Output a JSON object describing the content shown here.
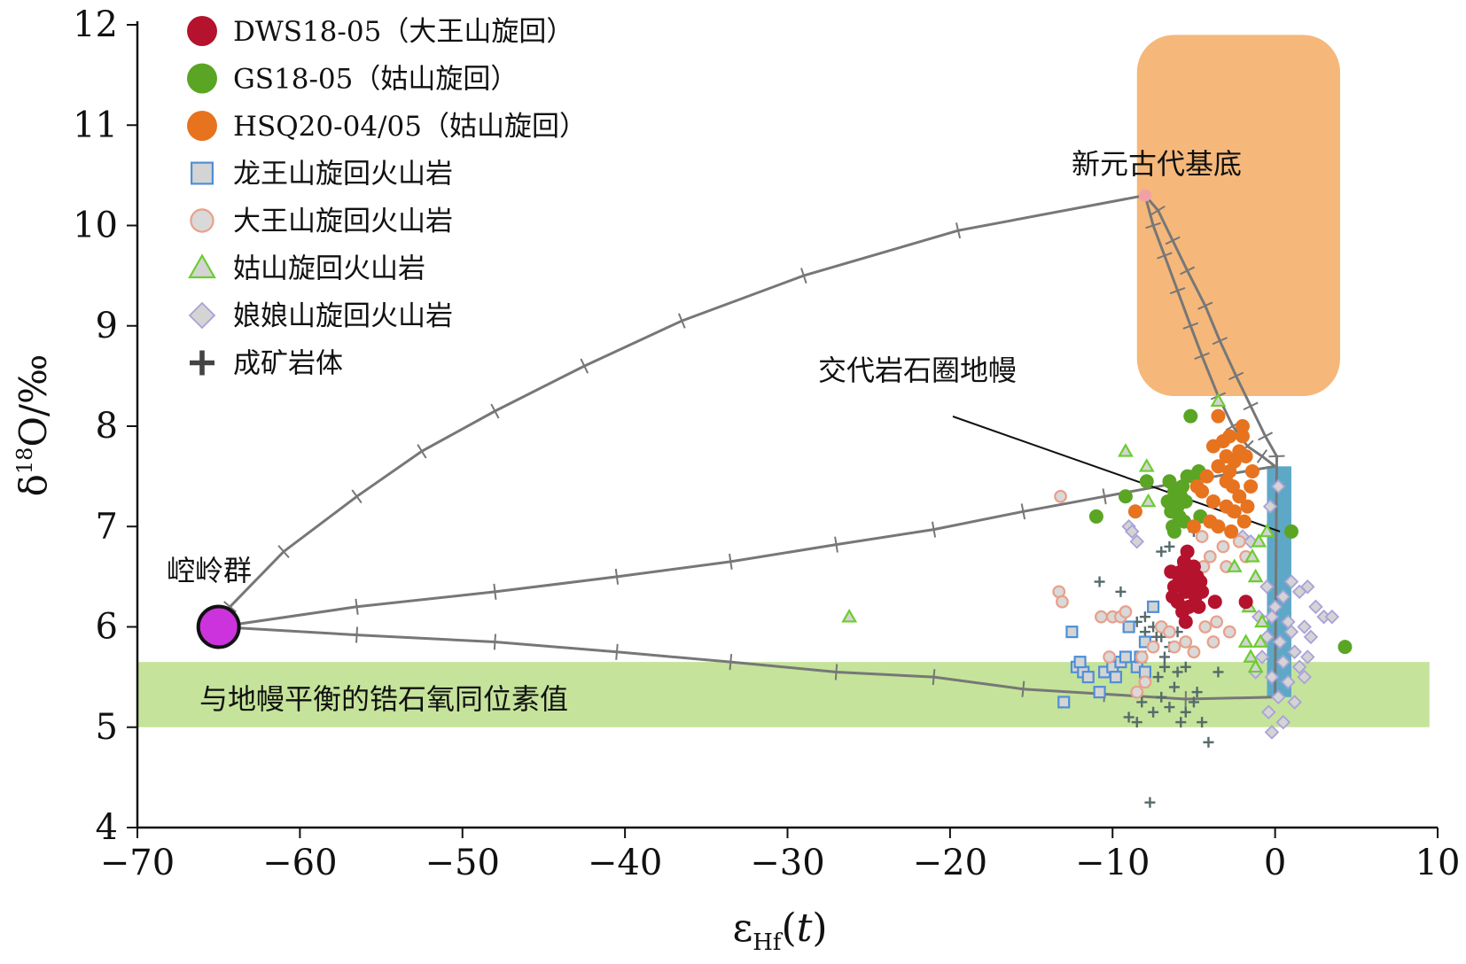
{
  "chart_data": {
    "type": "scatter",
    "xlabel": "εHf(t)",
    "ylabel": "δ18O/‰",
    "xlim": [
      -70,
      10
    ],
    "ylim": [
      4,
      12
    ],
    "x_ticks": [
      "−70",
      "−60",
      "−50",
      "−40",
      "−30",
      "−20",
      "−10",
      "0",
      "10"
    ],
    "y_ticks": [
      "4",
      "5",
      "6",
      "7",
      "8",
      "9",
      "10",
      "11",
      "12"
    ],
    "colors": {
      "dws": "#b5122e",
      "gs": "#5aa524",
      "hsq": "#e7731f",
      "basement": "#f5b87a",
      "mantle_band": "#c5e39a",
      "depleted_mantle": "#5ea8c7",
      "kongling": "#cc33dd",
      "curve": "#777777",
      "orebody": "#4a6a6a"
    },
    "legend": [
      {
        "key": "dws",
        "label": "DWS18-05（大王山旋回）",
        "marker": "filled-circle",
        "color": "#b5122e"
      },
      {
        "key": "gs",
        "label": "GS18-05（姑山旋回）",
        "marker": "filled-circle",
        "color": "#5aa524"
      },
      {
        "key": "hsq",
        "label": "HSQ20-04/05（姑山旋回）",
        "marker": "filled-circle",
        "color": "#e7731f"
      },
      {
        "key": "lws",
        "label": "龙王山旋回火山岩",
        "marker": "square",
        "color": "#4f8fd6"
      },
      {
        "key": "dws_volc",
        "label": "大王山旋回火山岩",
        "marker": "open-circle",
        "color": "#e9a08a"
      },
      {
        "key": "gs_volc",
        "label": "姑山旋回火山岩",
        "marker": "triangle",
        "color": "#6ccd2e"
      },
      {
        "key": "nns_volc",
        "label": "娘娘山旋回火山岩",
        "marker": "diamond",
        "color": "#a9a2d9"
      },
      {
        "key": "orebody",
        "label": "成矿岩体",
        "marker": "plus",
        "color": "#444444"
      }
    ],
    "annotations": {
      "basement": "新元古代基底",
      "metasomatized_mantle": "交代岩石圈地幔",
      "kongling": "崆岭群",
      "mantle_zircon": "与地幔平衡的锆石氧同位素值"
    },
    "regions": {
      "basement_box": {
        "x": [
          -8.5,
          4
        ],
        "y": [
          8.3,
          11.9
        ]
      },
      "mantle_band": {
        "x": [
          -70,
          9.5
        ],
        "y": [
          5.0,
          5.65
        ]
      },
      "depleted_mantle_bar": {
        "x": [
          -0.5,
          1.0
        ],
        "y": [
          5.3,
          7.6
        ]
      }
    },
    "endmembers": {
      "kongling": {
        "x": -65,
        "y": 6.0
      },
      "basement": {
        "x": -8,
        "y": 10.3
      },
      "mantle_top": {
        "x": 0,
        "y": 7.6
      },
      "mantle_bottom": {
        "x": 0,
        "y": 5.3
      },
      "metasomatized_mantle": {
        "x": 0.3,
        "y": 6.95
      }
    },
    "mixing_curves": [
      {
        "from": "kongling",
        "to": "basement",
        "ticks": [
          [
            -64.3,
            6.2
          ],
          [
            -61,
            6.75
          ],
          [
            -56.5,
            7.3
          ],
          [
            -52.5,
            7.75
          ],
          [
            -48,
            8.15
          ],
          [
            -42.5,
            8.6
          ],
          [
            -36.5,
            9.05
          ],
          [
            -29,
            9.5
          ],
          [
            -19.5,
            9.95
          ]
        ]
      },
      {
        "from": "kongling",
        "to": "mantle_top",
        "ticks": [
          [
            -56.5,
            6.2
          ],
          [
            -48,
            6.35
          ],
          [
            -40.5,
            6.5
          ],
          [
            -33.5,
            6.65
          ],
          [
            -27,
            6.82
          ],
          [
            -21,
            6.97
          ],
          [
            -15.5,
            7.15
          ],
          [
            -10.5,
            7.3
          ],
          [
            -5.5,
            7.45
          ]
        ]
      },
      {
        "from": "kongling",
        "to": "mantle_bottom",
        "ticks": [
          [
            -56.5,
            5.92
          ],
          [
            -48,
            5.85
          ],
          [
            -40.5,
            5.75
          ],
          [
            -33.5,
            5.65
          ],
          [
            -27,
            5.55
          ],
          [
            -21,
            5.5
          ],
          [
            -15.5,
            5.38
          ],
          [
            -10.5,
            5.33
          ],
          [
            -5.5,
            5.28
          ]
        ]
      },
      {
        "from": "basement",
        "to": "mantle_top",
        "ticks": [
          [
            -7.5,
            10.0
          ],
          [
            -6.8,
            9.7
          ],
          [
            -6.0,
            9.35
          ],
          [
            -5.2,
            9.0
          ],
          [
            -4.5,
            8.7
          ],
          [
            -3.5,
            8.3
          ],
          [
            -2.6,
            8.0
          ],
          [
            -1.7,
            7.8
          ],
          [
            -0.8,
            7.7
          ]
        ]
      },
      {
        "from": "basement",
        "to": "mantle_bottom",
        "ticks": [
          [
            -7.2,
            10.15
          ],
          [
            -6.3,
            9.85
          ],
          [
            -5.4,
            9.55
          ],
          [
            -4.3,
            9.2
          ],
          [
            -3.4,
            8.85
          ],
          [
            -2.4,
            8.5
          ],
          [
            -1.5,
            8.2
          ],
          [
            -0.6,
            7.9
          ],
          [
            0.1,
            7.7
          ]
        ]
      }
    ],
    "series": [
      {
        "key": "dws",
        "name": "DWS18-05（大王山旋回）",
        "points": [
          [
            -5.5,
            6.35
          ],
          [
            -5.2,
            6.45
          ],
          [
            -5.8,
            6.55
          ],
          [
            -4.8,
            6.5
          ],
          [
            -6.2,
            6.4
          ],
          [
            -5.6,
            6.65
          ],
          [
            -5.3,
            6.2
          ],
          [
            -4.5,
            6.35
          ],
          [
            -6.0,
            6.25
          ],
          [
            -5.0,
            6.6
          ],
          [
            -5.4,
            6.75
          ],
          [
            -4.9,
            6.3
          ],
          [
            -5.7,
            6.15
          ],
          [
            -6.4,
            6.55
          ],
          [
            -4.6,
            6.45
          ],
          [
            -5.1,
            6.4
          ],
          [
            -5.9,
            6.45
          ],
          [
            -5.5,
            6.05
          ],
          [
            -6.3,
            6.3
          ],
          [
            -4.7,
            6.2
          ],
          [
            -3.7,
            6.25
          ],
          [
            -1.8,
            6.25
          ],
          [
            -5.5,
            6.5
          ],
          [
            -5.2,
            6.35
          ]
        ]
      },
      {
        "key": "gs",
        "name": "GS18-05（姑山旋回）",
        "points": [
          [
            -5.2,
            8.1
          ],
          [
            -7.9,
            7.45
          ],
          [
            -6.5,
            7.45
          ],
          [
            -6.2,
            7.35
          ],
          [
            -5.8,
            7.3
          ],
          [
            -6.0,
            7.2
          ],
          [
            -6.4,
            7.15
          ],
          [
            -5.7,
            7.4
          ],
          [
            -5.5,
            7.25
          ],
          [
            -6.3,
            7.0
          ],
          [
            -5.9,
            7.1
          ],
          [
            -6.1,
            7.3
          ],
          [
            -5.4,
            7.5
          ],
          [
            -5.0,
            7.5
          ],
          [
            -4.7,
            7.55
          ],
          [
            -6.6,
            7.25
          ],
          [
            -6.2,
            6.95
          ],
          [
            -5.6,
            7.05
          ],
          [
            -9.2,
            7.3
          ],
          [
            -11.0,
            7.1
          ],
          [
            -4.6,
            7.1
          ],
          [
            1.0,
            6.95
          ],
          [
            4.3,
            5.8
          ]
        ]
      },
      {
        "key": "hsq",
        "name": "HSQ20-04/05（姑山旋回）",
        "points": [
          [
            -3.5,
            8.1
          ],
          [
            -2.8,
            7.9
          ],
          [
            -3.0,
            7.7
          ],
          [
            -3.5,
            7.6
          ],
          [
            -2.5,
            7.65
          ],
          [
            -2.0,
            7.9
          ],
          [
            -1.8,
            7.7
          ],
          [
            -3.8,
            7.8
          ],
          [
            -4.2,
            7.5
          ],
          [
            -2.6,
            7.4
          ],
          [
            -2.2,
            7.3
          ],
          [
            -3.0,
            7.2
          ],
          [
            -3.5,
            7.0
          ],
          [
            -1.9,
            7.05
          ],
          [
            -2.7,
            6.95
          ],
          [
            -3.8,
            7.25
          ],
          [
            -4.5,
            7.35
          ],
          [
            -1.5,
            7.4
          ],
          [
            -1.4,
            7.55
          ],
          [
            -2.8,
            7.55
          ],
          [
            -3.2,
            7.85
          ],
          [
            -2.0,
            8.0
          ],
          [
            -4.8,
            7.4
          ],
          [
            -5.0,
            7.0
          ],
          [
            -3.0,
            7.45
          ],
          [
            -2.5,
            7.15
          ],
          [
            -8.6,
            7.15
          ],
          [
            -2.2,
            7.75
          ],
          [
            -4.0,
            7.05
          ],
          [
            -1.7,
            7.2
          ]
        ]
      },
      {
        "key": "lws",
        "name": "龙王山旋回火山岩",
        "points": [
          [
            -12.5,
            5.95
          ],
          [
            -12.2,
            5.6
          ],
          [
            -11.8,
            5.55
          ],
          [
            -11.5,
            5.5
          ],
          [
            -10.5,
            5.55
          ],
          [
            -10.0,
            5.6
          ],
          [
            -9.5,
            5.65
          ],
          [
            -10.8,
            5.35
          ],
          [
            -13.0,
            5.25
          ],
          [
            -9.2,
            5.7
          ],
          [
            -8.5,
            5.6
          ],
          [
            -8.0,
            5.55
          ],
          [
            -8.0,
            5.85
          ],
          [
            -9.0,
            6.0
          ],
          [
            -7.5,
            6.2
          ],
          [
            -12.0,
            5.65
          ],
          [
            -8.3,
            5.7
          ],
          [
            -9.8,
            5.5
          ]
        ]
      },
      {
        "key": "dws_volc",
        "name": "大王山旋回火山岩",
        "points": [
          [
            -13.2,
            7.3
          ],
          [
            -13.3,
            6.35
          ],
          [
            -13.1,
            6.25
          ],
          [
            -10.7,
            6.1
          ],
          [
            -10.0,
            6.1
          ],
          [
            -9.5,
            6.1
          ],
          [
            -9.2,
            6.15
          ],
          [
            -10.2,
            5.7
          ],
          [
            -8.2,
            5.7
          ],
          [
            -8.0,
            5.45
          ],
          [
            -8.5,
            5.35
          ],
          [
            -7.5,
            5.8
          ],
          [
            -7.0,
            6.0
          ],
          [
            -6.5,
            5.95
          ],
          [
            -6.2,
            5.8
          ],
          [
            -5.5,
            5.85
          ],
          [
            -5.0,
            5.75
          ],
          [
            -4.3,
            6.0
          ],
          [
            -3.8,
            5.85
          ],
          [
            -3.6,
            6.05
          ],
          [
            -2.8,
            5.95
          ],
          [
            -4.0,
            6.7
          ],
          [
            -3.2,
            6.8
          ],
          [
            -4.5,
            6.9
          ],
          [
            -2.6,
            7.15
          ],
          [
            -2.2,
            6.85
          ],
          [
            -1.8,
            6.7
          ],
          [
            -4.4,
            6.6
          ],
          [
            -3.0,
            6.6
          ]
        ]
      },
      {
        "key": "gs_volc",
        "name": "姑山旋回火山岩",
        "points": [
          [
            -9.2,
            7.75
          ],
          [
            -7.9,
            7.6
          ],
          [
            -7.8,
            7.25
          ],
          [
            -26.2,
            6.1
          ],
          [
            -3.5,
            8.25
          ],
          [
            -1.0,
            6.85
          ],
          [
            -0.5,
            6.95
          ],
          [
            -1.4,
            6.7
          ],
          [
            -1.2,
            6.5
          ],
          [
            -1.6,
            6.2
          ],
          [
            -1.8,
            5.85
          ],
          [
            -1.5,
            5.7
          ],
          [
            -0.9,
            5.85
          ],
          [
            -1.2,
            5.6
          ],
          [
            -0.8,
            6.05
          ],
          [
            -2.5,
            6.6
          ]
        ]
      },
      {
        "key": "nns_volc",
        "name": "娘娘山旋回火山岩",
        "points": [
          [
            0.2,
            7.4
          ],
          [
            -0.3,
            7.2
          ],
          [
            -1.5,
            6.85
          ],
          [
            -2.0,
            6.9
          ],
          [
            -0.5,
            6.4
          ],
          [
            0.5,
            6.3
          ],
          [
            1.0,
            6.45
          ],
          [
            1.5,
            6.35
          ],
          [
            2.0,
            6.4
          ],
          [
            2.5,
            6.2
          ],
          [
            3.0,
            6.1
          ],
          [
            3.5,
            6.1
          ],
          [
            1.8,
            6.0
          ],
          [
            0.8,
            6.05
          ],
          [
            -0.2,
            6.1
          ],
          [
            -0.5,
            5.9
          ],
          [
            0.3,
            5.85
          ],
          [
            1.2,
            5.75
          ],
          [
            2.0,
            5.7
          ],
          [
            -0.8,
            5.7
          ],
          [
            0.5,
            5.65
          ],
          [
            1.5,
            5.6
          ],
          [
            -0.2,
            5.5
          ],
          [
            0.8,
            5.45
          ],
          [
            1.8,
            5.5
          ],
          [
            0.2,
            5.3
          ],
          [
            1.2,
            5.25
          ],
          [
            -0.4,
            5.15
          ],
          [
            0.5,
            5.05
          ],
          [
            -0.2,
            4.95
          ],
          [
            -9.0,
            7.0
          ],
          [
            -8.5,
            6.85
          ],
          [
            -8.8,
            6.95
          ],
          [
            -1.0,
            6.1
          ],
          [
            2.2,
            5.9
          ],
          [
            -1.2,
            5.55
          ],
          [
            1.0,
            5.95
          ],
          [
            0.0,
            6.2
          ]
        ]
      },
      {
        "key": "orebody",
        "name": "成矿岩体",
        "points": [
          [
            -10.8,
            6.45
          ],
          [
            -9.5,
            6.35
          ],
          [
            -8.5,
            6.05
          ],
          [
            -8.0,
            6.1
          ],
          [
            -7.5,
            6.0
          ],
          [
            -7.0,
            5.9
          ],
          [
            -6.5,
            5.8
          ],
          [
            -6.8,
            5.6
          ],
          [
            -7.2,
            5.5
          ],
          [
            -6.0,
            5.55
          ],
          [
            -5.5,
            5.6
          ],
          [
            -6.2,
            5.4
          ],
          [
            -7.0,
            5.3
          ],
          [
            -8.2,
            5.25
          ],
          [
            -9.0,
            5.1
          ],
          [
            -8.5,
            5.05
          ],
          [
            -7.5,
            5.15
          ],
          [
            -6.5,
            5.2
          ],
          [
            -5.5,
            5.15
          ],
          [
            -5.0,
            5.25
          ],
          [
            -4.5,
            5.05
          ],
          [
            -4.8,
            5.35
          ],
          [
            -6.8,
            5.7
          ],
          [
            -8.0,
            5.95
          ],
          [
            -5.8,
            5.05
          ],
          [
            -4.1,
            4.85
          ],
          [
            -7.7,
            4.25
          ],
          [
            -5.0,
            6.95
          ],
          [
            -7.0,
            6.75
          ],
          [
            -6.5,
            6.8
          ],
          [
            -3.5,
            5.55
          ],
          [
            -7.3,
            5.9
          ],
          [
            -6.0,
            5.95
          ]
        ]
      }
    ]
  }
}
